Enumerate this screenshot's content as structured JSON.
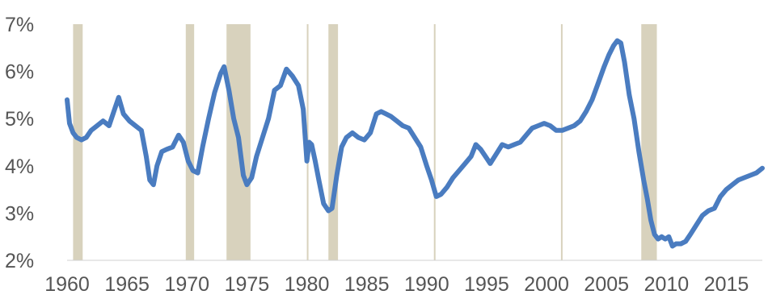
{
  "colors": {
    "line": "#4a7cc0",
    "recession": "#d8d2bd",
    "axis": "#d0d0d0",
    "text": "#555555",
    "background": "#ffffff"
  },
  "chart_data": {
    "type": "line",
    "title": "",
    "xlabel": "",
    "ylabel": "",
    "xlim": [
      1960,
      2018
    ],
    "ylim": [
      2,
      7
    ],
    "grid": false,
    "legend": "none",
    "x_ticks": [
      1960,
      1965,
      1970,
      1975,
      1980,
      1985,
      1990,
      1995,
      2000,
      2005,
      2010,
      2015
    ],
    "x_tick_labels": [
      "1960",
      "1965",
      "1970",
      "1975",
      "1980",
      "1985",
      "1990",
      "1995",
      "2000",
      "2005",
      "2010",
      "2015"
    ],
    "y_ticks": [
      2,
      3,
      4,
      5,
      6,
      7
    ],
    "y_tick_labels": [
      "2%",
      "3%",
      "4%",
      "5%",
      "6%",
      "7%"
    ],
    "recessions": [
      [
        1960.5,
        1961.3
      ],
      [
        1969.9,
        1970.6
      ],
      [
        1973.3,
        1975.3
      ],
      [
        1980.0,
        1980.1
      ],
      [
        1981.8,
        1982.6
      ],
      [
        1990.6,
        1990.7
      ],
      [
        2001.2,
        2001.3
      ],
      [
        2007.9,
        2009.2
      ]
    ],
    "series": [
      {
        "x": [
          1960.0,
          1960.2,
          1960.5,
          1960.8,
          1961.2,
          1961.6,
          1962.0,
          1962.5,
          1963.0,
          1963.5,
          1963.9,
          1964.3,
          1964.7,
          1965.2,
          1965.7,
          1966.2,
          1966.6,
          1966.9,
          1967.2,
          1967.5,
          1967.9,
          1968.3,
          1968.8,
          1969.3,
          1969.7,
          1970.1,
          1970.5,
          1970.9,
          1971.3,
          1971.8,
          1972.3,
          1972.8,
          1973.1,
          1973.5,
          1973.9,
          1974.3,
          1974.7,
          1975.0,
          1975.4,
          1975.8,
          1976.3,
          1976.8,
          1977.3,
          1977.8,
          1978.3,
          1978.8,
          1979.3,
          1979.7,
          1980.0,
          1980.2,
          1980.4,
          1980.7,
          1981.0,
          1981.4,
          1981.8,
          1982.1,
          1982.5,
          1982.9,
          1983.3,
          1983.8,
          1984.3,
          1984.8,
          1985.3,
          1985.8,
          1986.2,
          1986.6,
          1987.0,
          1987.5,
          1988.0,
          1988.5,
          1989.0,
          1989.5,
          1990.0,
          1990.4,
          1990.8,
          1991.2,
          1991.7,
          1992.2,
          1992.7,
          1993.2,
          1993.7,
          1994.1,
          1994.5,
          1994.9,
          1995.3,
          1995.8,
          1996.3,
          1996.8,
          1997.3,
          1997.8,
          1998.3,
          1998.8,
          1999.3,
          1999.8,
          2000.3,
          2000.8,
          2001.3,
          2001.8,
          2002.3,
          2002.8,
          2003.3,
          2003.8,
          2004.3,
          2004.8,
          2005.2,
          2005.6,
          2005.9,
          2006.2,
          2006.5,
          2006.9,
          2007.3,
          2007.7,
          2008.1,
          2008.4,
          2008.7,
          2009.0,
          2009.3,
          2009.6,
          2009.9,
          2010.2,
          2010.5,
          2010.8,
          2011.2,
          2011.6,
          2012.0,
          2012.5,
          2013.0,
          2013.5,
          2014.0,
          2014.5,
          2015.0,
          2015.5,
          2016.0,
          2016.5,
          2017.0,
          2017.5,
          2018.0
        ],
        "values": [
          5.4,
          4.9,
          4.7,
          4.6,
          4.55,
          4.6,
          4.75,
          4.85,
          4.95,
          4.85,
          5.15,
          5.45,
          5.1,
          4.95,
          4.85,
          4.75,
          4.2,
          3.7,
          3.6,
          4.0,
          4.3,
          4.35,
          4.4,
          4.65,
          4.5,
          4.1,
          3.9,
          3.85,
          4.4,
          5.0,
          5.55,
          5.95,
          6.1,
          5.6,
          5.0,
          4.6,
          3.8,
          3.6,
          3.75,
          4.2,
          4.6,
          5.0,
          5.6,
          5.7,
          6.05,
          5.9,
          5.7,
          5.2,
          4.1,
          4.5,
          4.45,
          4.1,
          3.7,
          3.2,
          3.05,
          3.1,
          3.8,
          4.4,
          4.6,
          4.7,
          4.6,
          4.55,
          4.7,
          5.1,
          5.15,
          5.1,
          5.05,
          4.95,
          4.85,
          4.8,
          4.6,
          4.4,
          4.0,
          3.7,
          3.35,
          3.4,
          3.55,
          3.75,
          3.9,
          4.05,
          4.2,
          4.45,
          4.35,
          4.2,
          4.05,
          4.25,
          4.45,
          4.4,
          4.45,
          4.5,
          4.65,
          4.8,
          4.85,
          4.9,
          4.85,
          4.75,
          4.75,
          4.8,
          4.85,
          4.95,
          5.15,
          5.4,
          5.75,
          6.1,
          6.35,
          6.55,
          6.65,
          6.6,
          6.2,
          5.5,
          5.0,
          4.3,
          3.7,
          3.3,
          2.85,
          2.55,
          2.45,
          2.5,
          2.45,
          2.5,
          2.3,
          2.35,
          2.35,
          2.4,
          2.55,
          2.75,
          2.95,
          3.05,
          3.1,
          3.35,
          3.5,
          3.6,
          3.7,
          3.75,
          3.8,
          3.85,
          3.95
        ]
      }
    ]
  }
}
